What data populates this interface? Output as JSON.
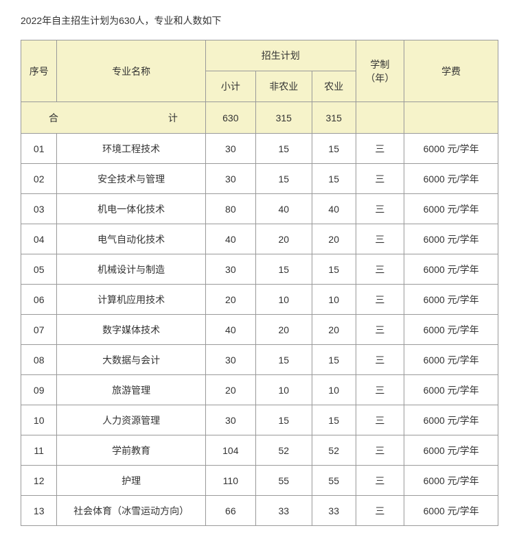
{
  "intro": "2022年自主招生计划为630人，专业和人数如下",
  "headers": {
    "seq": "序号",
    "major": "专业名称",
    "plan": "招生计划",
    "subtotal": "小计",
    "non_agri": "非农业",
    "agri": "农业",
    "years": "学制（年）",
    "fee": "学费"
  },
  "total": {
    "label": "合计",
    "subtotal": "630",
    "non_agri": "315",
    "agri": "315",
    "years": "",
    "fee": ""
  },
  "rows": [
    {
      "id": "01",
      "major": "环境工程技术",
      "subtotal": "30",
      "non_agri": "15",
      "agri": "15",
      "years": "三",
      "fee": "6000 元/学年"
    },
    {
      "id": "02",
      "major": "安全技术与管理",
      "subtotal": "30",
      "non_agri": "15",
      "agri": "15",
      "years": "三",
      "fee": "6000 元/学年"
    },
    {
      "id": "03",
      "major": "机电一体化技术",
      "subtotal": "80",
      "non_agri": "40",
      "agri": "40",
      "years": "三",
      "fee": "6000 元/学年"
    },
    {
      "id": "04",
      "major": "电气自动化技术",
      "subtotal": "40",
      "non_agri": "20",
      "agri": "20",
      "years": "三",
      "fee": "6000 元/学年"
    },
    {
      "id": "05",
      "major": "机械设计与制造",
      "subtotal": "30",
      "non_agri": "15",
      "agri": "15",
      "years": "三",
      "fee": "6000 元/学年"
    },
    {
      "id": "06",
      "major": "计算机应用技术",
      "subtotal": "20",
      "non_agri": "10",
      "agri": "10",
      "years": "三",
      "fee": "6000 元/学年"
    },
    {
      "id": "07",
      "major": "数字媒体技术",
      "subtotal": "40",
      "non_agri": "20",
      "agri": "20",
      "years": "三",
      "fee": "6000 元/学年"
    },
    {
      "id": "08",
      "major": "大数据与会计",
      "subtotal": "30",
      "non_agri": "15",
      "agri": "15",
      "years": "三",
      "fee": "6000 元/学年"
    },
    {
      "id": "09",
      "major": "旅游管理",
      "subtotal": "20",
      "non_agri": "10",
      "agri": "10",
      "years": "三",
      "fee": "6000 元/学年"
    },
    {
      "id": "10",
      "major": "人力资源管理",
      "subtotal": "30",
      "non_agri": "15",
      "agri": "15",
      "years": "三",
      "fee": "6000 元/学年"
    },
    {
      "id": "11",
      "major": "学前教育",
      "subtotal": "104",
      "non_agri": "52",
      "agri": "52",
      "years": "三",
      "fee": "6000 元/学年"
    },
    {
      "id": "12",
      "major": "护理",
      "subtotal": "110",
      "non_agri": "55",
      "agri": "55",
      "years": "三",
      "fee": "6000 元/学年"
    },
    {
      "id": "13",
      "major": "社会体育（冰雪运动方向）",
      "subtotal": "66",
      "non_agri": "33",
      "agri": "33",
      "years": "三",
      "fee": "6000 元/学年"
    }
  ]
}
